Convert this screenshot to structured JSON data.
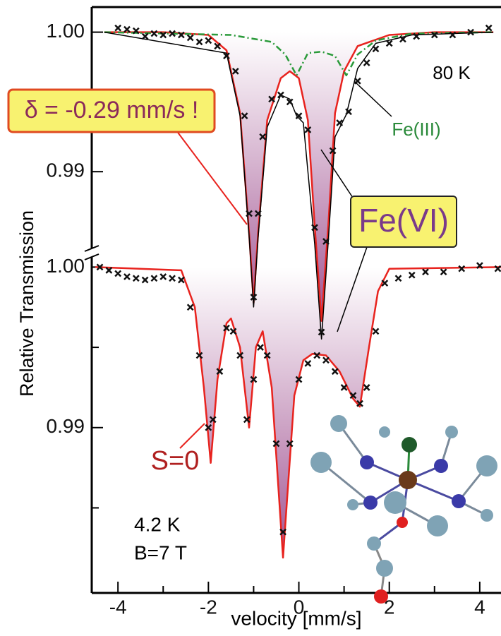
{
  "chart_data": [
    {
      "type": "line",
      "annotations": [
        "80 K",
        "δ = -0.29 mm/s !",
        "Fe(III)",
        "Fe(VI)"
      ],
      "xlim": [
        -4.58,
        4.47
      ],
      "ylim": [
        0.9598,
        1.0018
      ],
      "yticks": [
        {
          "value": 1,
          "label": "1.00"
        },
        0.99
      ],
      "minor_yticks": [
        0.995
      ],
      "series": [
        {
          "style": "fill-line",
          "color": "#e8231e",
          "fill_color": "#9c4a8c",
          "x": [
            -4.3,
            -3,
            -2,
            -1.6,
            -1.3,
            -1.1,
            -1.0,
            -0.9,
            -0.7,
            -0.4,
            -0.2,
            0.0,
            0.2,
            0.35,
            0.5,
            0.65,
            0.8,
            1.0,
            1.3,
            2.0,
            3,
            4.3
          ],
          "values": [
            1.0,
            1.0,
            0.9998,
            0.9987,
            0.9942,
            0.9856,
            0.9806,
            0.9856,
            0.9937,
            0.9967,
            0.9972,
            0.9967,
            0.9937,
            0.9861,
            0.9793,
            0.9861,
            0.9942,
            0.9972,
            0.999,
            0.9998,
            1.0,
            1.0
          ]
        },
        {
          "style": "dashed",
          "color": "#2a9a3a",
          "x": [
            -4.3,
            -1.5,
            -0.6,
            -0.3,
            -0.05,
            0.2,
            0.5,
            0.8,
            1.05,
            1.3,
            1.7,
            2.5,
            4.3
          ],
          "values": [
            1.0,
            0.9998,
            0.9993,
            0.9984,
            0.9969,
            0.9985,
            0.9986,
            0.9983,
            0.9969,
            0.9984,
            0.9994,
            0.9999,
            1.0
          ]
        },
        {
          "style": "line",
          "color": "#000000",
          "x": [
            -4.3,
            -1.6,
            -1.3,
            -1.1,
            -1.0,
            -0.9,
            -0.7,
            -0.4,
            -0.2,
            -0.05,
            0.1,
            0.35,
            0.5,
            0.65,
            0.8,
            1.05,
            1.3,
            1.7,
            2.5,
            4.3
          ],
          "values": [
            1.0,
            0.9985,
            0.994,
            0.9854,
            0.9803,
            0.9853,
            0.9932,
            0.9955,
            0.9952,
            0.994,
            0.9935,
            0.9848,
            0.978,
            0.985,
            0.9925,
            0.9941,
            0.9974,
            0.9992,
            0.9998,
            1.0
          ]
        },
        {
          "style": "markers",
          "color": "#111111",
          "x": [
            -4.0,
            -3.8,
            -3.6,
            -3.4,
            -3.2,
            -3.0,
            -2.8,
            -2.6,
            -2.4,
            -2.2,
            -2.0,
            -1.8,
            -1.6,
            -1.4,
            -1.2,
            -1.1,
            -1.0,
            -0.9,
            -0.8,
            -0.6,
            -0.4,
            -0.2,
            0.0,
            0.2,
            0.35,
            0.5,
            0.6,
            0.75,
            0.9,
            1.1,
            1.3,
            1.5,
            1.7,
            2.0,
            2.3,
            2.6,
            3.0,
            3.4,
            3.8,
            4.2
          ],
          "values": [
            1.0003,
            1.0002,
            1.0001,
            0.9997,
            0.9999,
            0.9998,
            0.9999,
            0.9998,
            0.9996,
            0.9993,
            0.9994,
            0.999,
            0.9983,
            0.9972,
            0.994,
            0.987,
            0.981,
            0.987,
            0.9925,
            0.9952,
            0.9955,
            0.995,
            0.994,
            0.993,
            0.986,
            0.9785,
            0.985,
            0.9915,
            0.9935,
            0.9943,
            0.9965,
            0.9978,
            0.9988,
            0.9992,
            0.9995,
            0.9997,
            0.9998,
            0.9998,
            1.0,
            1.0003
          ]
        }
      ]
    },
    {
      "type": "line",
      "annotations": [
        "S=0",
        "4.2 K",
        "B=7 T"
      ],
      "xlabel": "velocity [mm/s]",
      "ylabel": "Relative Transmission",
      "xlim": [
        -4.58,
        4.47
      ],
      "xticks": [
        -4,
        -2,
        0,
        2,
        4
      ],
      "minor_xticks": [
        -3,
        -1,
        1,
        3
      ],
      "ylim": [
        0.9797,
        1.0162
      ],
      "yticks": [
        {
          "value": 1,
          "label": "1.00"
        },
        0.99
      ],
      "minor_yticks": [
        0.995,
        0.985
      ],
      "series": [
        {
          "style": "fill-line",
          "color": "#e8231e",
          "fill_color": "#9c4a8c",
          "x": [
            -4.5,
            -2.6,
            -2.3,
            -2.1,
            -1.95,
            -1.8,
            -1.6,
            -1.5,
            -1.3,
            -1.1,
            -0.95,
            -0.8,
            -0.6,
            -0.35,
            -0.1,
            0.1,
            0.3,
            0.6,
            0.9,
            1.2,
            1.35,
            1.55,
            1.75,
            2.0,
            4.5
          ],
          "values": [
            1.0,
            0.9998,
            0.9975,
            0.9925,
            0.9878,
            0.993,
            0.9965,
            0.9968,
            0.995,
            0.99,
            0.995,
            0.996,
            0.9925,
            0.9819,
            0.992,
            0.9942,
            0.9946,
            0.9945,
            0.9935,
            0.9918,
            0.9913,
            0.995,
            0.9985,
            0.9999,
            1.0
          ]
        },
        {
          "style": "markers",
          "color": "#111111",
          "x": [
            -4.4,
            -4.2,
            -4.0,
            -3.8,
            -3.6,
            -3.4,
            -3.2,
            -3.0,
            -2.8,
            -2.6,
            -2.4,
            -2.2,
            -2.0,
            -1.9,
            -1.75,
            -1.6,
            -1.45,
            -1.3,
            -1.15,
            -1.0,
            -0.85,
            -0.7,
            -0.5,
            -0.35,
            -0.2,
            0.0,
            0.2,
            0.4,
            0.6,
            0.8,
            1.0,
            1.2,
            1.35,
            1.5,
            1.7,
            1.9,
            2.2,
            2.5,
            2.8,
            3.2,
            3.6,
            4.0,
            4.4
          ],
          "values": [
            1.0,
            0.9998,
            0.9996,
            0.9994,
            0.9993,
            0.9992,
            0.9993,
            0.9994,
            0.9993,
            0.9992,
            0.9975,
            0.9945,
            0.99,
            0.9905,
            0.9935,
            0.9962,
            0.996,
            0.9945,
            0.9905,
            0.993,
            0.995,
            0.9945,
            0.989,
            0.9835,
            0.989,
            0.993,
            0.994,
            0.9945,
            0.9942,
            0.9935,
            0.9925,
            0.992,
            0.9915,
            0.9925,
            0.996,
            0.999,
            0.9993,
            0.9995,
            0.9997,
            0.9997,
            0.9999,
            1.0001,
            0.9999
          ]
        }
      ]
    }
  ]
}
